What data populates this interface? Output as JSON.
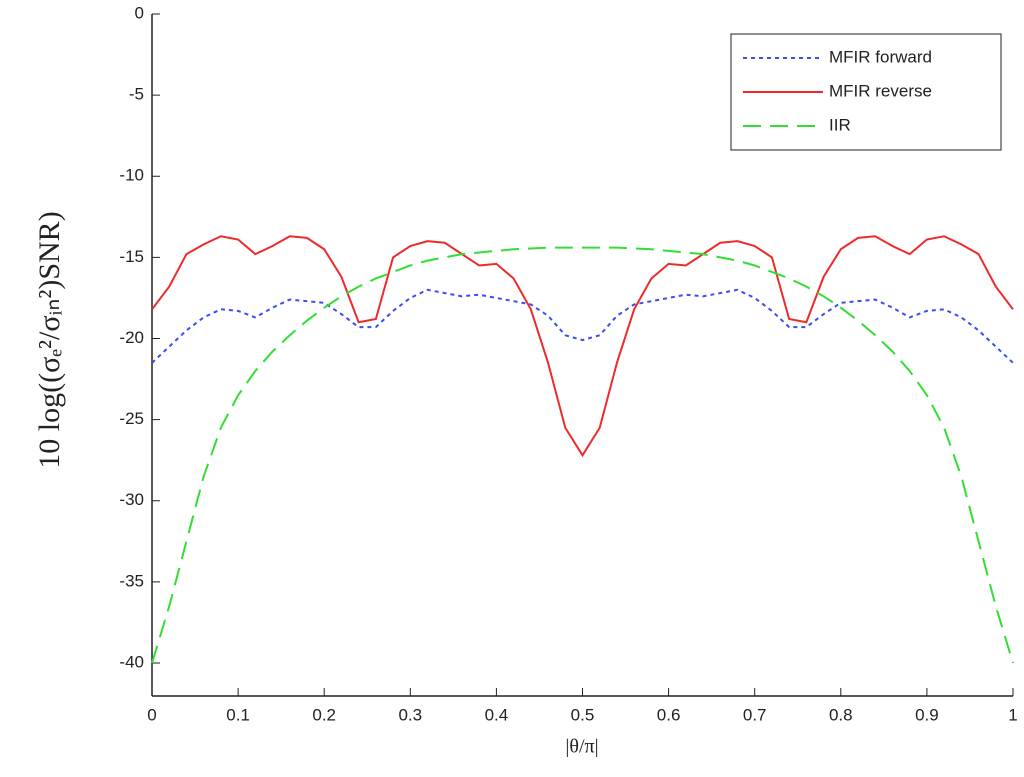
{
  "chart_data": {
    "type": "line",
    "x_label": "|θ/π|",
    "y_label": "10 log((σₑ²/σᵢₙ²)SNR)",
    "x": [
      0,
      0.02,
      0.04,
      0.06,
      0.08,
      0.1,
      0.12,
      0.14,
      0.16,
      0.18,
      0.2,
      0.22,
      0.24,
      0.26,
      0.28,
      0.3,
      0.32,
      0.34,
      0.36,
      0.38,
      0.4,
      0.42,
      0.44,
      0.46,
      0.48,
      0.5,
      0.52,
      0.54,
      0.56,
      0.58,
      0.6,
      0.62,
      0.64,
      0.66,
      0.68,
      0.7,
      0.72,
      0.74,
      0.76,
      0.78,
      0.8,
      0.82,
      0.84,
      0.86,
      0.88,
      0.9,
      0.92,
      0.94,
      0.96,
      0.98,
      1
    ],
    "series": [
      {
        "name": "MFIR forward",
        "color": "#3a4ef0",
        "dash": "4,4",
        "values": [
          -21.5,
          -20.5,
          -19.5,
          -18.7,
          -18.2,
          -18.3,
          -18.7,
          -18.1,
          -17.6,
          -17.7,
          -17.8,
          -18.5,
          -19.3,
          -19.3,
          -18.3,
          -17.5,
          -17,
          -17.2,
          -17.4,
          -17.3,
          -17.5,
          -17.7,
          -17.9,
          -18.6,
          -19.8,
          -20.1,
          -19.8,
          -18.6,
          -17.9,
          -17.7,
          -17.5,
          -17.3,
          -17.4,
          -17.2,
          -17,
          -17.5,
          -18.3,
          -19.3,
          -19.3,
          -18.5,
          -17.8,
          -17.7,
          -17.6,
          -18.1,
          -18.7,
          -18.3,
          -18.2,
          -18.7,
          -19.5,
          -20.5,
          -21.5
        ]
      },
      {
        "name": "MFIR reverse",
        "color": "#ee2a2a",
        "dash": "none",
        "values": [
          -18.2,
          -16.8,
          -14.8,
          -14.2,
          -13.7,
          -13.9,
          -14.8,
          -14.3,
          -13.7,
          -13.8,
          -14.5,
          -16.2,
          -19,
          -18.8,
          -15,
          -14.3,
          -14,
          -14.1,
          -14.8,
          -15.5,
          -15.4,
          -16.3,
          -18.2,
          -21.5,
          -25.5,
          -27.2,
          -25.5,
          -21.5,
          -18.2,
          -16.3,
          -15.4,
          -15.5,
          -14.8,
          -14.1,
          -14,
          -14.3,
          -15,
          -18.8,
          -19,
          -16.2,
          -14.5,
          -13.8,
          -13.7,
          -14.3,
          -14.8,
          -13.9,
          -13.7,
          -14.2,
          -14.8,
          -16.8,
          -18.2
        ]
      },
      {
        "name": "IIR",
        "color": "#33dd33",
        "dash": "18,9",
        "values": [
          -40,
          -36.5,
          -32.5,
          -28.5,
          -25.5,
          -23.5,
          -22,
          -20.8,
          -19.8,
          -18.9,
          -18.1,
          -17.4,
          -16.8,
          -16.3,
          -15.9,
          -15.5,
          -15.2,
          -15,
          -14.8,
          -14.7,
          -14.6,
          -14.5,
          -14.45,
          -14.4,
          -14.4,
          -14.4,
          -14.4,
          -14.4,
          -14.45,
          -14.5,
          -14.6,
          -14.7,
          -14.8,
          -15,
          -15.2,
          -15.5,
          -15.9,
          -16.3,
          -16.8,
          -17.4,
          -18.1,
          -18.9,
          -19.8,
          -20.8,
          -22,
          -23.5,
          -25.5,
          -28.5,
          -32.5,
          -36.5,
          -40
        ]
      }
    ],
    "xlim": [
      0,
      1
    ],
    "ylim": [
      -40,
      0
    ],
    "xticks": [
      0,
      0.1,
      0.2,
      0.3,
      0.4,
      0.5,
      0.6,
      0.7,
      0.8,
      0.9,
      1
    ],
    "yticks": [
      0,
      -5,
      -10,
      -15,
      -20,
      -25,
      -30,
      -35,
      -40
    ],
    "grid": false,
    "legend": "top-right"
  }
}
